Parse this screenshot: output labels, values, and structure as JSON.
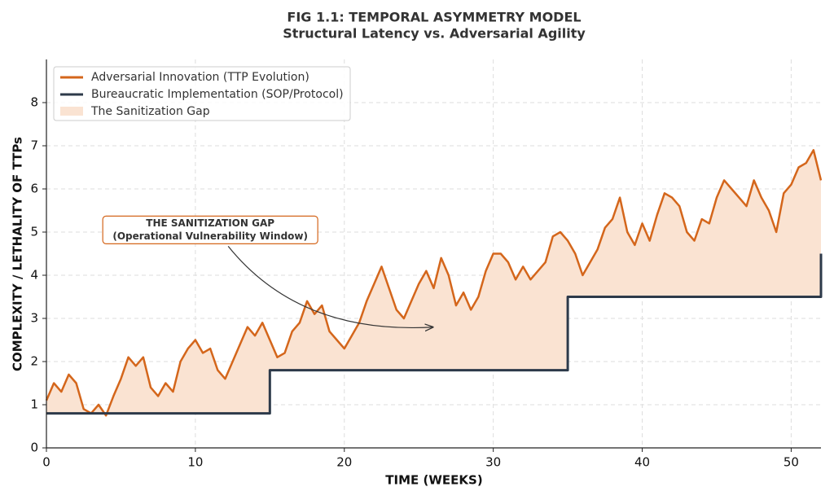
{
  "chart_data": {
    "type": "line",
    "title": "FIG 1.1: TEMPORAL ASYMMETRY MODEL",
    "subtitle": "Structural Latency vs. Adversarial Agility",
    "x_label": "TIME (WEEKS)",
    "y_label": "COMPLEXITY / LETHALITY OF TTPs",
    "xlim": [
      0,
      52
    ],
    "ylim": [
      0,
      9
    ],
    "xticks": [
      0,
      10,
      20,
      30,
      40,
      50
    ],
    "yticks": [
      0,
      1,
      2,
      3,
      4,
      5,
      6,
      7,
      8
    ],
    "grid": true,
    "legend": "upper left",
    "series": [
      {
        "name": "Adversarial Innovation (TTP Evolution)",
        "color": "#d4661b",
        "x": [
          0,
          0.5,
          1,
          1.5,
          2,
          2.5,
          3,
          3.5,
          4,
          4.5,
          5,
          5.5,
          6,
          6.5,
          7,
          7.5,
          8,
          8.5,
          9,
          9.5,
          10,
          10.5,
          11,
          11.5,
          12,
          12.5,
          13,
          13.5,
          14,
          14.5,
          15,
          15.5,
          16,
          16.5,
          17,
          17.5,
          18,
          18.5,
          19,
          19.5,
          20,
          20.5,
          21,
          21.5,
          22,
          22.5,
          23,
          23.5,
          24,
          24.5,
          25,
          25.5,
          26,
          26.5,
          27,
          27.5,
          28,
          28.5,
          29,
          29.5,
          30,
          30.5,
          31,
          31.5,
          32,
          32.5,
          33,
          33.5,
          34,
          34.5,
          35,
          35.5,
          36,
          36.5,
          37,
          37.5,
          38,
          38.5,
          39,
          39.5,
          40,
          40.5,
          41,
          41.5,
          42,
          42.5,
          43,
          43.5,
          44,
          44.5,
          45,
          45.5,
          46,
          46.5,
          47,
          47.5,
          48,
          48.5,
          49,
          49.5,
          50,
          50.5,
          51,
          51.5,
          52
        ],
        "values": [
          1.1,
          1.5,
          1.3,
          1.7,
          1.5,
          0.9,
          0.8,
          1.0,
          0.75,
          1.2,
          1.6,
          2.1,
          1.9,
          2.1,
          1.4,
          1.2,
          1.5,
          1.3,
          2.0,
          2.3,
          2.5,
          2.2,
          2.3,
          1.8,
          1.6,
          2.0,
          2.4,
          2.8,
          2.6,
          2.9,
          2.5,
          2.1,
          2.2,
          2.7,
          2.9,
          3.4,
          3.1,
          3.3,
          2.7,
          2.5,
          2.3,
          2.6,
          2.9,
          3.4,
          3.8,
          4.2,
          3.7,
          3.2,
          3.0,
          3.4,
          3.8,
          4.1,
          3.7,
          4.4,
          4.0,
          3.3,
          3.6,
          3.2,
          3.5,
          4.1,
          4.5,
          4.5,
          4.3,
          3.9,
          4.2,
          3.9,
          4.1,
          4.3,
          4.9,
          5.0,
          4.8,
          4.5,
          4.0,
          4.3,
          4.6,
          5.1,
          5.3,
          5.8,
          5.0,
          4.7,
          5.2,
          4.8,
          5.4,
          5.9,
          5.8,
          5.6,
          5.0,
          4.8,
          5.3,
          5.2,
          5.8,
          6.2,
          6.0,
          5.8,
          5.6,
          6.2,
          5.8,
          5.5,
          5.0,
          5.9,
          6.1,
          6.5,
          6.6,
          6.9,
          6.2
        ]
      },
      {
        "name": "Bureaucratic Implementation (SOP/Protocol)",
        "color": "#2d3a4a",
        "x": [
          0,
          15,
          15,
          35,
          35,
          52,
          52
        ],
        "values": [
          0.8,
          0.8,
          1.8,
          1.8,
          3.5,
          3.5,
          4.5
        ]
      }
    ],
    "fill": {
      "name": "The Sanitization Gap",
      "color": "#fae3d2"
    },
    "annotation": {
      "lines": [
        "THE SANITIZATION GAP",
        "(Operational Vulnerability Window)"
      ],
      "xy": [
        26,
        2.8
      ],
      "xytext": [
        11,
        5.05
      ]
    }
  }
}
